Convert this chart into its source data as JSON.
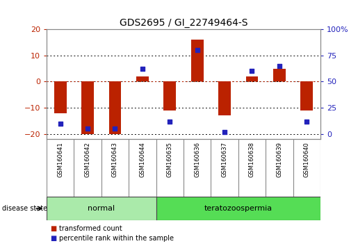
{
  "title": "GDS2695 / GI_22749464-S",
  "samples": [
    "GSM160641",
    "GSM160642",
    "GSM160643",
    "GSM160644",
    "GSM160635",
    "GSM160636",
    "GSM160637",
    "GSM160638",
    "GSM160639",
    "GSM160640"
  ],
  "red_bars": [
    -12,
    -20,
    -20,
    2,
    -11,
    16,
    -13,
    2,
    5,
    -11
  ],
  "blue_pct": [
    10,
    5,
    5,
    62,
    12,
    80,
    2,
    60,
    65,
    12
  ],
  "ylim": [
    -22,
    20
  ],
  "yticks_left": [
    -20,
    -10,
    0,
    10,
    20
  ],
  "disease_groups": [
    {
      "label": "normal",
      "start": 0,
      "end": 4,
      "color": "#aaeaaa"
    },
    {
      "label": "teratozoospermia",
      "start": 4,
      "end": 10,
      "color": "#55dd55"
    }
  ],
  "bar_color": "#bb2200",
  "dot_color": "#2222bb",
  "legend_red": "transformed count",
  "legend_blue": "percentile rank within the sample",
  "bar_width": 0.45,
  "dot_size": 22,
  "title_fontsize": 10,
  "tick_fontsize": 8,
  "label_fontsize": 7,
  "sample_label_bg": "#cccccc"
}
